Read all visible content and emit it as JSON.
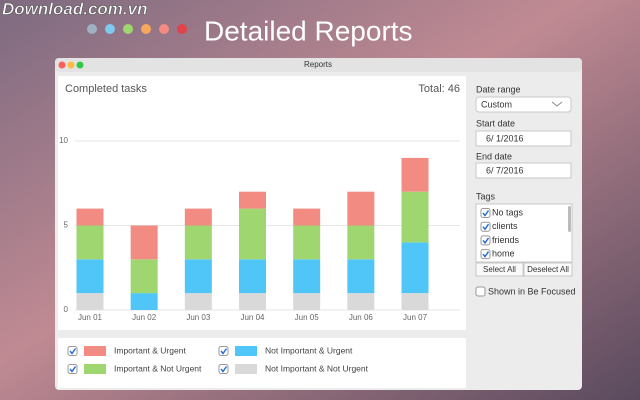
{
  "header": {
    "watermark": "Download.com.vn",
    "title": "Detailed Reports"
  },
  "window": {
    "title": "Reports"
  },
  "total": "Total: 46",
  "chart_data": {
    "type": "stacked-bar",
    "title": "Completed tasks",
    "categories": [
      "Jun 01",
      "Jun 02",
      "Jun 03",
      "Jun 04",
      "Jun 05",
      "Jun 06",
      "Jun 07"
    ],
    "series": [
      {
        "name": "Not Important & Not Urgent",
        "color": "#d9d9d9",
        "values": [
          1,
          0,
          1,
          1,
          1,
          1,
          1
        ]
      },
      {
        "name": "Not Important & Urgent",
        "color": "#4fc6f7",
        "values": [
          2,
          1,
          2,
          2,
          2,
          2,
          3
        ]
      },
      {
        "name": "Important & Not Urgent",
        "color": "#9fd66f",
        "values": [
          2,
          2,
          2,
          3,
          2,
          2,
          3
        ]
      },
      {
        "name": "Important & Urgent",
        "color": "#f28b82",
        "values": [
          1,
          2,
          1,
          1,
          1,
          2,
          2
        ]
      }
    ],
    "ylim": [
      0,
      10
    ],
    "yticks": [
      0,
      5,
      10
    ],
    "grid": true
  },
  "sidebar": {
    "date_range_label": "Date range",
    "date_range_value": "Custom",
    "start_label": "Start date",
    "start_value": "6/ 1/2016",
    "end_label": "End date",
    "end_value": "6/ 7/2016",
    "tags_label": "Tags",
    "tags": [
      {
        "label": "No tags",
        "checked": true
      },
      {
        "label": "clients",
        "checked": true
      },
      {
        "label": "friends",
        "checked": true
      },
      {
        "label": "home",
        "checked": true
      }
    ],
    "select_all": "Select All",
    "deselect_all": "Deselect All",
    "focused": {
      "label": "Shown in Be Focused",
      "checked": false
    }
  }
}
